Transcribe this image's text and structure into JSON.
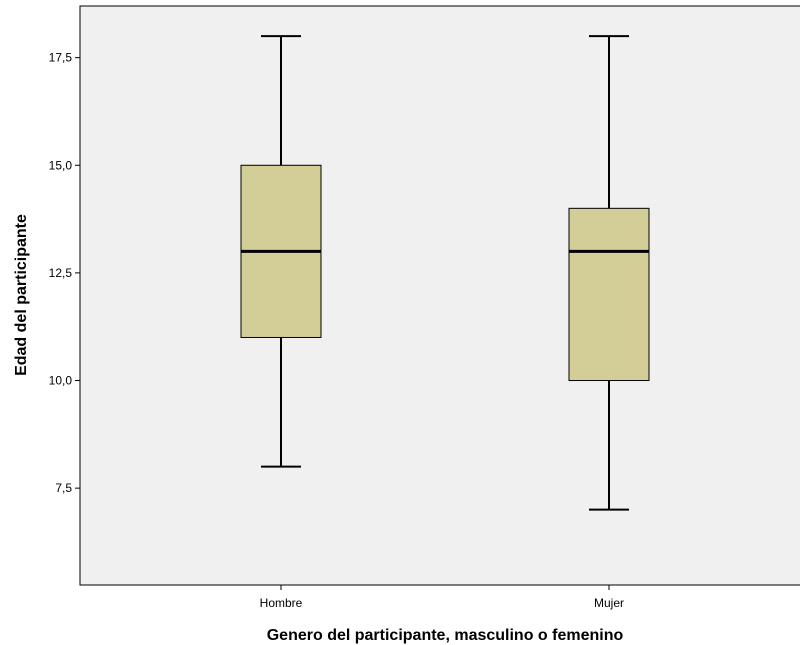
{
  "chart_data": {
    "type": "boxplot",
    "xlabel": "Genero del participante, masculino o femenino",
    "ylabel": "Edad del participante",
    "ylim": [
      5.25,
      18.7
    ],
    "yticks": [
      7.5,
      10.0,
      12.5,
      15.0,
      17.5
    ],
    "ytick_labels": [
      "7,5",
      "10,0",
      "12,5",
      "15,0",
      "17,5"
    ],
    "grid": false,
    "categories": [
      "Hombre",
      "Mujer"
    ],
    "boxes": [
      {
        "category": "Hombre",
        "min": 8,
        "q1": 11,
        "median": 13,
        "q3": 15,
        "max": 18
      },
      {
        "category": "Mujer",
        "min": 7,
        "q1": 10,
        "median": 13,
        "q3": 14,
        "max": 18
      }
    ],
    "colors": {
      "plot_background": "#f0f0f0",
      "box_fill": "#d3ce98",
      "line": "#000000"
    }
  }
}
